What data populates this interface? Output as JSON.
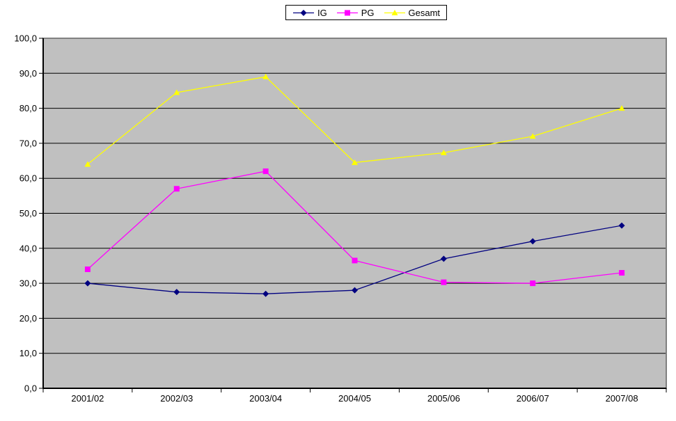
{
  "chart_data": {
    "type": "line",
    "title": "",
    "xlabel": "",
    "ylabel": "",
    "categories": [
      "2001/02",
      "2002/03",
      "2003/04",
      "2004/05",
      "2005/06",
      "2006/07",
      "2007/08"
    ],
    "series": [
      {
        "name": "IG",
        "color": "#000080",
        "marker": "diamond",
        "values": [
          30,
          27.5,
          27,
          28,
          37,
          42,
          46.5
        ]
      },
      {
        "name": "PG",
        "color": "#FF00FF",
        "marker": "square",
        "values": [
          34,
          57,
          62,
          36.5,
          30.3,
          30,
          33
        ]
      },
      {
        "name": "Gesamt",
        "color": "#FFFF00",
        "marker": "triangle",
        "values": [
          64,
          84.5,
          89,
          64.5,
          67.3,
          72,
          80
        ]
      }
    ],
    "ylim": [
      0,
      100
    ],
    "ytick_step": 10,
    "ytick_labels": [
      "0,0",
      "10,0",
      "20,0",
      "30,0",
      "40,0",
      "50,0",
      "60,0",
      "70,0",
      "80,0",
      "90,0",
      "100,0"
    ],
    "grid": "horizontal",
    "legend_position": "top-center",
    "legend_labels": [
      "IG",
      "PG",
      "Gesamt"
    ],
    "colors": {
      "plot_bg": "#C0C0C0",
      "grid": "#000000",
      "plot_border": "#808080",
      "axis": "#000000",
      "page_bg": "#FFFFFF",
      "legend_border": "#000000",
      "legend_bg": "#FFFFFF",
      "text": "#000000"
    }
  }
}
